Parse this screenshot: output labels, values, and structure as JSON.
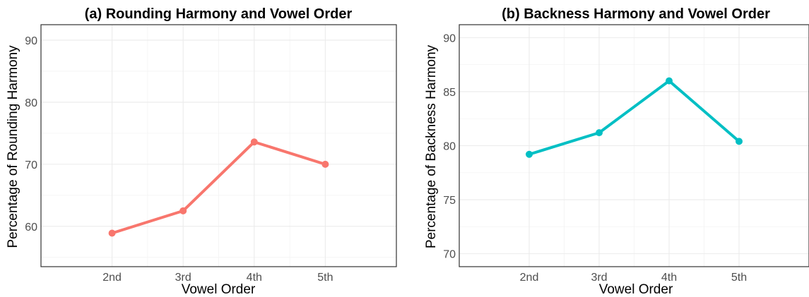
{
  "chart_data": [
    {
      "type": "line",
      "title": "(a) Rounding Harmony and Vowel Order",
      "xlabel": "Vowel Order",
      "ylabel": "Percentage of Rounding Harmony",
      "categories": [
        "2nd",
        "3rd",
        "4th",
        "5th"
      ],
      "values": [
        58.9,
        62.5,
        73.6,
        70.0
      ],
      "ylim": [
        53.5,
        92.5
      ],
      "yticks": [
        60,
        70,
        80,
        90
      ],
      "yminor": [
        55,
        65,
        75,
        85
      ],
      "color": "#f8766d",
      "grid": true
    },
    {
      "type": "line",
      "title": "(b) Backness Harmony and Vowel Order",
      "xlabel": "Vowel Order",
      "ylabel": "Percentage of Backness Harmony",
      "categories": [
        "2nd",
        "3rd",
        "4th",
        "5th"
      ],
      "values": [
        79.2,
        81.2,
        86.0,
        80.4
      ],
      "ylim": [
        68.8,
        91.2
      ],
      "yticks": [
        70,
        75,
        80,
        85,
        90
      ],
      "yminor": [
        72.5,
        77.5,
        82.5,
        87.5
      ],
      "color": "#00bfc4",
      "grid": true
    }
  ]
}
